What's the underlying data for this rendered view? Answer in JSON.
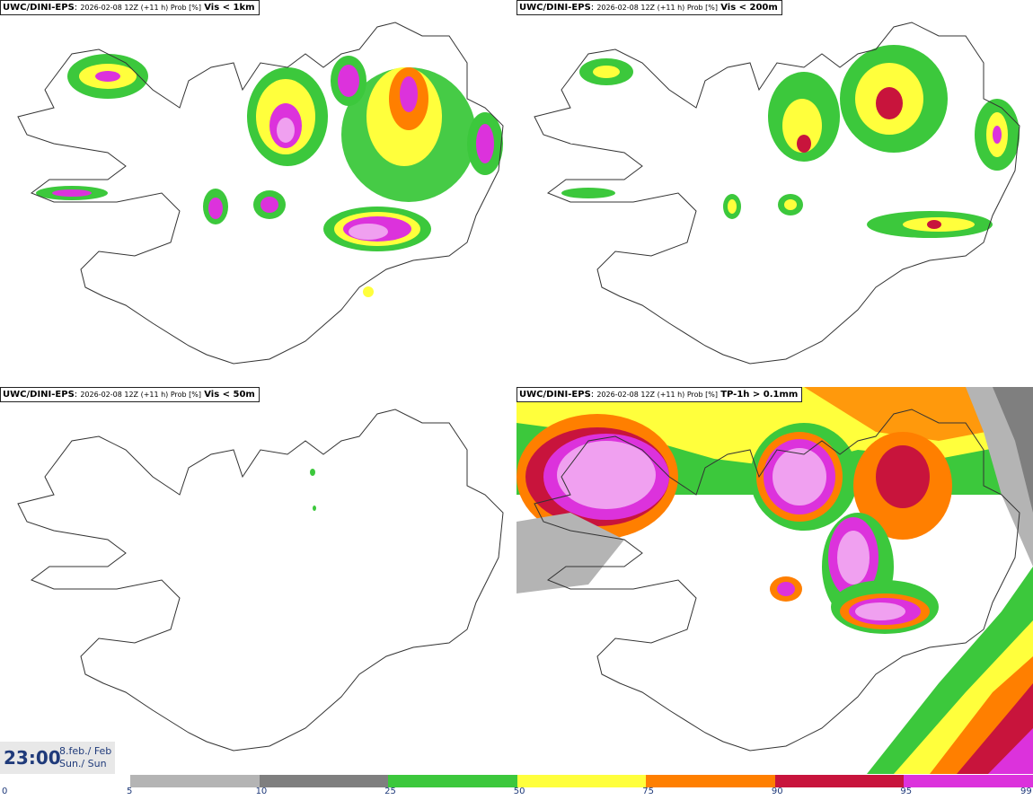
{
  "panels": [
    {
      "model": "UWC/DINI-EPS",
      "info": "2026-02-08 12Z (+11 h) Prob [%]",
      "param": "Vis < 1km"
    },
    {
      "model": "UWC/DINI-EPS",
      "info": "2026-02-08 12Z (+11 h) Prob [%]",
      "param": "Vis < 200m"
    },
    {
      "model": "UWC/DINI-EPS",
      "info": "2026-02-08 12Z (+11 h) Prob [%]",
      "param": "Vis < 50m"
    },
    {
      "model": "UWC/DINI-EPS",
      "info": "2026-02-08 12Z (+11 h) Prob [%]",
      "param": "TP-1h > 0.1mm"
    }
  ],
  "valid_time": {
    "time": "23:00",
    "date_line1": "8.feb./ Feb",
    "date_line2": "Sun./ Sun"
  },
  "legend": {
    "ticks": [
      "0",
      "5",
      "10",
      "25",
      "50",
      "75",
      "90",
      "95",
      "99"
    ],
    "colors": [
      "#b4b4b4",
      "#7f7f7f",
      "#3cc83c",
      "#ffff3c",
      "#ff7f00",
      "#c8143c",
      "#dc32dc"
    ]
  },
  "colors": {
    "coast": "#333333",
    "text": "#1f3a7a"
  }
}
